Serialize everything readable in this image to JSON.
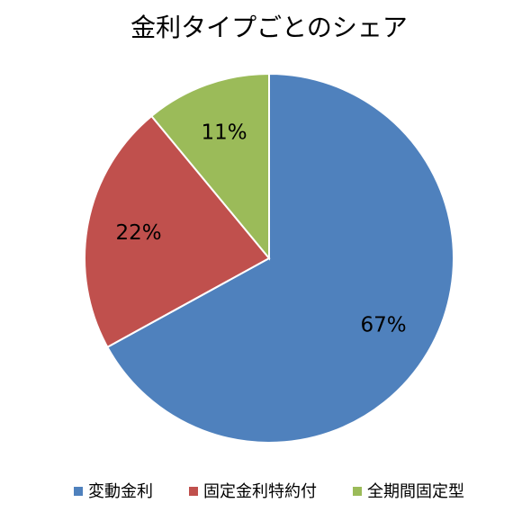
{
  "chart_data": {
    "type": "pie",
    "title": "金利タイプごとのシェア",
    "categories": [
      "変動金利",
      "固定金利特約付",
      "全期間固定型"
    ],
    "values": [
      67,
      22,
      11
    ],
    "value_labels": [
      "67%",
      "22%",
      "11%"
    ],
    "colors": [
      "#4f81bd",
      "#c0504d",
      "#9bbb59"
    ],
    "legend": "bottom"
  }
}
